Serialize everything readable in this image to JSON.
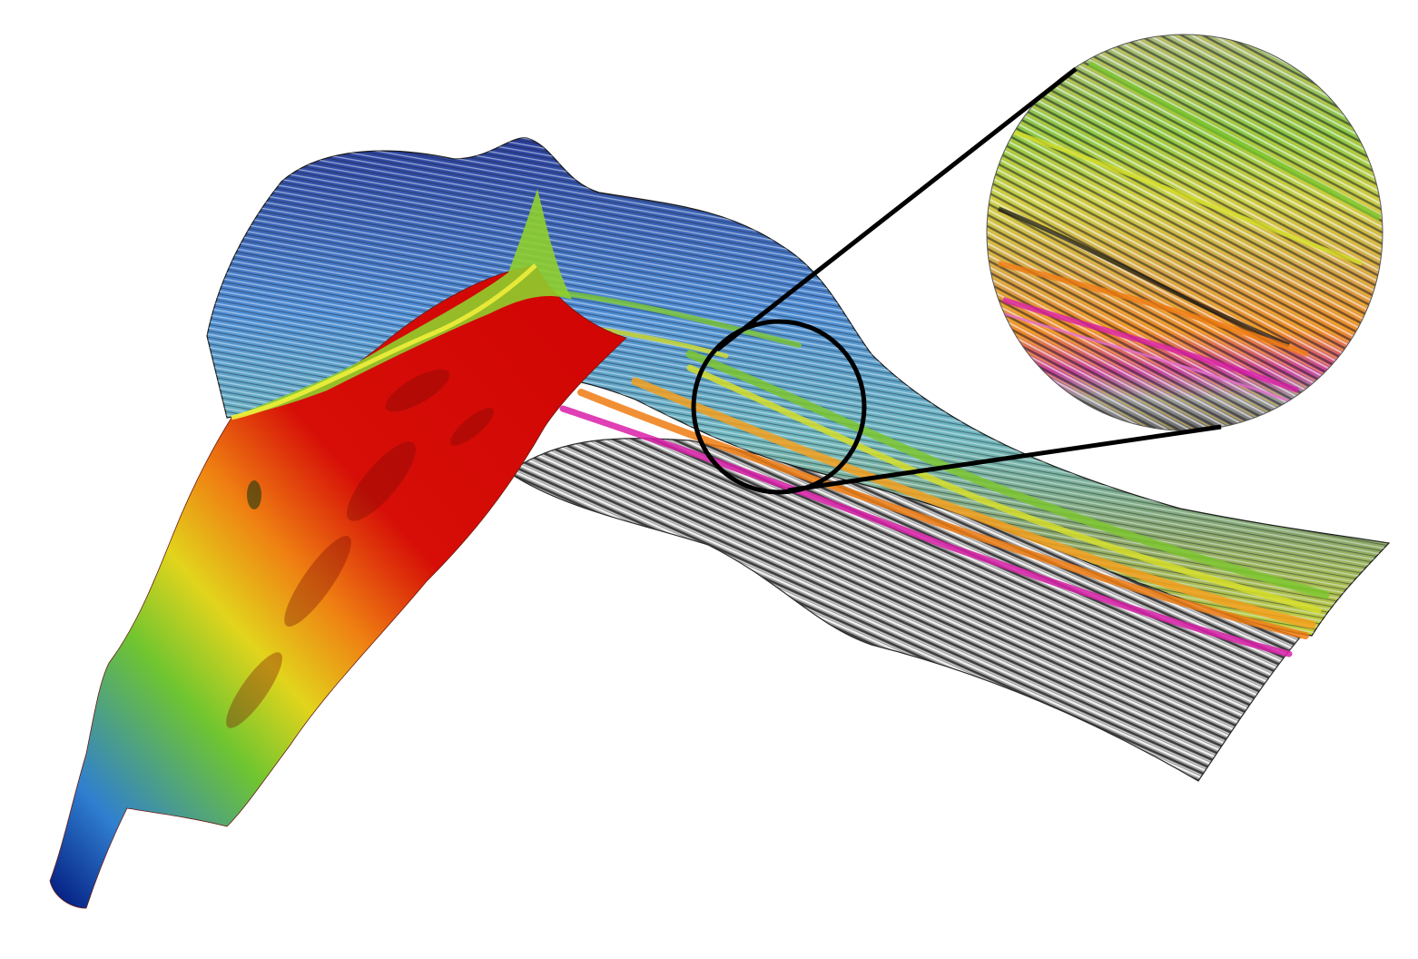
{
  "figure": {
    "kind": "3D seismic section with interpreted horizon surfaces and magnified inset",
    "horizon_colors": [
      "#27409a",
      "#5aa3e0",
      "#7dc62f",
      "#d6de2a",
      "#f4a01e",
      "#ef7b12",
      "#d91fa8"
    ],
    "surface_gradient": [
      "#00147a",
      "#3a86d6",
      "#7cc62c",
      "#e6d51e",
      "#ee7a10",
      "#d40a06"
    ],
    "seismic_colors": [
      "#3e3e3e",
      "#8a8a8a",
      "#cfcfcf",
      "#ffffff"
    ],
    "outline_color": "#000000"
  }
}
